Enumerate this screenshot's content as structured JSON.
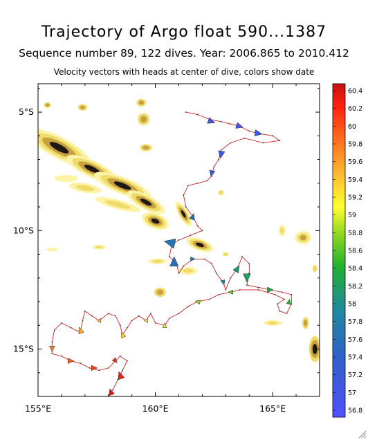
{
  "window": {
    "resize_grip_icon": "resize-grip-icon"
  },
  "chart_data": {
    "type": "scatter",
    "title": "Trajectory of Argo float 590...1387",
    "subtitle": "Sequence number 89, 122 dives. Year: 2006.865 to 2010.412",
    "annotation": "Velocity vectors with heads at center of dive, colors show date",
    "xlabel": "",
    "ylabel": "",
    "xlim": [
      155,
      167
    ],
    "ylim": [
      -17,
      -3.8
    ],
    "x_ticks": [
      155,
      160,
      165
    ],
    "x_tick_labels": [
      "155°E",
      "160°E",
      "165°E"
    ],
    "y_ticks": [
      -5,
      -10,
      -15
    ],
    "y_tick_labels": [
      "5°S",
      "10°S",
      "15°S"
    ],
    "grid": false,
    "legend": "right colorbar",
    "colorbar": {
      "min": 56.8,
      "max": 60.4,
      "labels": [
        "60.4",
        "60.2",
        "60",
        "59.8",
        "59.6",
        "59.4",
        "59.2",
        "59",
        "58.8",
        "58.6",
        "58.4",
        "58.2",
        "58",
        "57.8",
        "57.6",
        "57.4",
        "57.2",
        "57",
        "56.8"
      ]
    },
    "colors": {
      "land": "#1f1712",
      "shelf_dark": "#8a6418",
      "shelf_mid": "#c8a040",
      "shelf_light": "#f0dc6a",
      "shelf_pale": "#fbf3a8",
      "track": "#cc2222"
    },
    "trajectory": [
      [
        161.3,
        -5.0
      ],
      [
        161.8,
        -5.1
      ],
      [
        162.3,
        -5.3
      ],
      [
        162.8,
        -5.4
      ],
      [
        163.2,
        -5.5
      ],
      [
        163.6,
        -5.6
      ],
      [
        164.0,
        -5.8
      ],
      [
        164.4,
        -5.9
      ],
      [
        165.0,
        -6.0
      ],
      [
        165.3,
        -6.2
      ],
      [
        164.6,
        -6.3
      ],
      [
        163.8,
        -6.1
      ],
      [
        163.2,
        -6.3
      ],
      [
        162.8,
        -6.6
      ],
      [
        162.7,
        -7.0
      ],
      [
        162.5,
        -7.3
      ],
      [
        162.4,
        -7.7
      ],
      [
        162.2,
        -7.9
      ],
      [
        161.8,
        -8.0
      ],
      [
        161.4,
        -8.1
      ],
      [
        161.2,
        -8.5
      ],
      [
        161.3,
        -9.0
      ],
      [
        161.6,
        -9.4
      ],
      [
        161.8,
        -9.8
      ],
      [
        162.0,
        -10.0
      ],
      [
        161.5,
        -10.2
      ],
      [
        161.0,
        -10.4
      ],
      [
        160.7,
        -10.6
      ],
      [
        160.6,
        -11.1
      ],
      [
        160.9,
        -11.4
      ],
      [
        161.0,
        -11.8
      ],
      [
        161.2,
        -11.5
      ],
      [
        161.6,
        -11.2
      ],
      [
        162.1,
        -11.2
      ],
      [
        162.4,
        -11.4
      ],
      [
        162.6,
        -11.8
      ],
      [
        162.9,
        -12.2
      ],
      [
        163.0,
        -12.5
      ],
      [
        163.2,
        -12.0
      ],
      [
        163.5,
        -11.6
      ],
      [
        163.7,
        -11.1
      ],
      [
        164.0,
        -11.4
      ],
      [
        164.0,
        -11.8
      ],
      [
        163.9,
        -12.3
      ],
      [
        164.4,
        -12.4
      ],
      [
        164.9,
        -12.5
      ],
      [
        165.4,
        -12.6
      ],
      [
        165.8,
        -12.7
      ],
      [
        165.8,
        -13.1
      ],
      [
        165.6,
        -13.5
      ],
      [
        165.3,
        -13.4
      ],
      [
        165.2,
        -13.1
      ],
      [
        165.5,
        -12.9
      ],
      [
        165.1,
        -12.7
      ],
      [
        164.4,
        -12.5
      ],
      [
        163.6,
        -12.5
      ],
      [
        163.2,
        -12.6
      ],
      [
        162.7,
        -12.7
      ],
      [
        162.3,
        -12.9
      ],
      [
        161.8,
        -13.0
      ],
      [
        161.4,
        -13.2
      ],
      [
        161.0,
        -13.5
      ],
      [
        160.6,
        -13.7
      ],
      [
        160.4,
        -14.0
      ],
      [
        160.0,
        -13.9
      ],
      [
        159.8,
        -13.5
      ],
      [
        159.6,
        -13.8
      ],
      [
        159.3,
        -13.6
      ],
      [
        159.0,
        -13.8
      ],
      [
        158.8,
        -14.1
      ],
      [
        158.6,
        -14.4
      ],
      [
        158.5,
        -14.0
      ],
      [
        158.3,
        -13.6
      ],
      [
        158.0,
        -13.5
      ],
      [
        157.6,
        -13.8
      ],
      [
        157.3,
        -13.6
      ],
      [
        157.0,
        -13.4
      ],
      [
        156.9,
        -13.8
      ],
      [
        156.8,
        -14.3
      ],
      [
        156.4,
        -14.1
      ],
      [
        156.0,
        -13.9
      ],
      [
        155.7,
        -14.2
      ],
      [
        155.6,
        -14.7
      ],
      [
        155.6,
        -15.2
      ],
      [
        156.0,
        -15.3
      ],
      [
        156.4,
        -15.5
      ],
      [
        156.8,
        -15.6
      ],
      [
        157.2,
        -15.8
      ],
      [
        157.6,
        -15.9
      ],
      [
        158.0,
        -15.8
      ],
      [
        158.3,
        -15.5
      ],
      [
        158.5,
        -15.3
      ],
      [
        158.8,
        -15.5
      ],
      [
        158.6,
        -15.9
      ],
      [
        158.4,
        -16.3
      ],
      [
        158.2,
        -16.7
      ],
      [
        158.0,
        -17.0
      ]
    ],
    "vectors": [
      {
        "x": 162.4,
        "y": -5.4,
        "dx": 0.28,
        "dy": -0.1,
        "c": 57.1
      },
      {
        "x": 163.6,
        "y": -5.6,
        "dx": 0.28,
        "dy": -0.08,
        "c": 57.0
      },
      {
        "x": 164.4,
        "y": -5.9,
        "dx": 0.3,
        "dy": -0.05,
        "c": 57.1
      },
      {
        "x": 162.8,
        "y": -6.8,
        "dx": -0.05,
        "dy": -0.3,
        "c": 57.2
      },
      {
        "x": 162.4,
        "y": -7.6,
        "dx": -0.05,
        "dy": -0.25,
        "c": 57.3
      },
      {
        "x": 161.6,
        "y": -9.4,
        "dx": 0.08,
        "dy": 0.25,
        "c": 57.6
      },
      {
        "x": 160.6,
        "y": -10.5,
        "dx": -0.45,
        "dy": 0.1,
        "c": 57.7
      },
      {
        "x": 160.8,
        "y": -11.3,
        "dx": 0.0,
        "dy": 0.4,
        "c": 57.6
      },
      {
        "x": 161.6,
        "y": -11.2,
        "dx": 0.2,
        "dy": 0.0,
        "c": 57.8
      },
      {
        "x": 162.9,
        "y": -12.2,
        "dx": 0.05,
        "dy": -0.2,
        "c": 58.0
      },
      {
        "x": 163.5,
        "y": -11.6,
        "dx": 0.15,
        "dy": 0.25,
        "c": 58.1
      },
      {
        "x": 163.9,
        "y": -12.0,
        "dx": 0.0,
        "dy": -0.35,
        "c": 58.2
      },
      {
        "x": 164.9,
        "y": -12.5,
        "dx": 0.25,
        "dy": 0.0,
        "c": 58.3
      },
      {
        "x": 165.7,
        "y": -13.0,
        "dx": 0.05,
        "dy": 0.2,
        "c": 58.4
      },
      {
        "x": 163.2,
        "y": -12.6,
        "dx": -0.2,
        "dy": 0.0,
        "c": 58.6
      },
      {
        "x": 161.8,
        "y": -13.0,
        "dx": -0.2,
        "dy": 0.05,
        "c": 58.8
      },
      {
        "x": 160.4,
        "y": -14.0,
        "dx": 0.0,
        "dy": 0.2,
        "c": 59.0
      },
      {
        "x": 159.6,
        "y": -13.8,
        "dx": -0.15,
        "dy": 0.0,
        "c": 59.2
      },
      {
        "x": 158.6,
        "y": -14.4,
        "dx": -0.1,
        "dy": 0.2,
        "c": 59.3
      },
      {
        "x": 157.6,
        "y": -13.8,
        "dx": -0.15,
        "dy": 0.0,
        "c": 59.4
      },
      {
        "x": 156.8,
        "y": -14.2,
        "dx": -0.1,
        "dy": 0.25,
        "c": 59.5
      },
      {
        "x": 155.6,
        "y": -15.0,
        "dx": 0.0,
        "dy": -0.25,
        "c": 59.7
      },
      {
        "x": 156.4,
        "y": -15.5,
        "dx": 0.25,
        "dy": 0.0,
        "c": 59.9
      },
      {
        "x": 157.4,
        "y": -15.8,
        "dx": 0.25,
        "dy": 0.0,
        "c": 60.0
      },
      {
        "x": 158.3,
        "y": -15.5,
        "dx": 0.15,
        "dy": -0.15,
        "c": 60.1
      },
      {
        "x": 158.5,
        "y": -16.1,
        "dx": -0.1,
        "dy": 0.3,
        "c": 60.2
      },
      {
        "x": 158.1,
        "y": -16.8,
        "dx": -0.08,
        "dy": 0.25,
        "c": 60.3
      }
    ]
  }
}
